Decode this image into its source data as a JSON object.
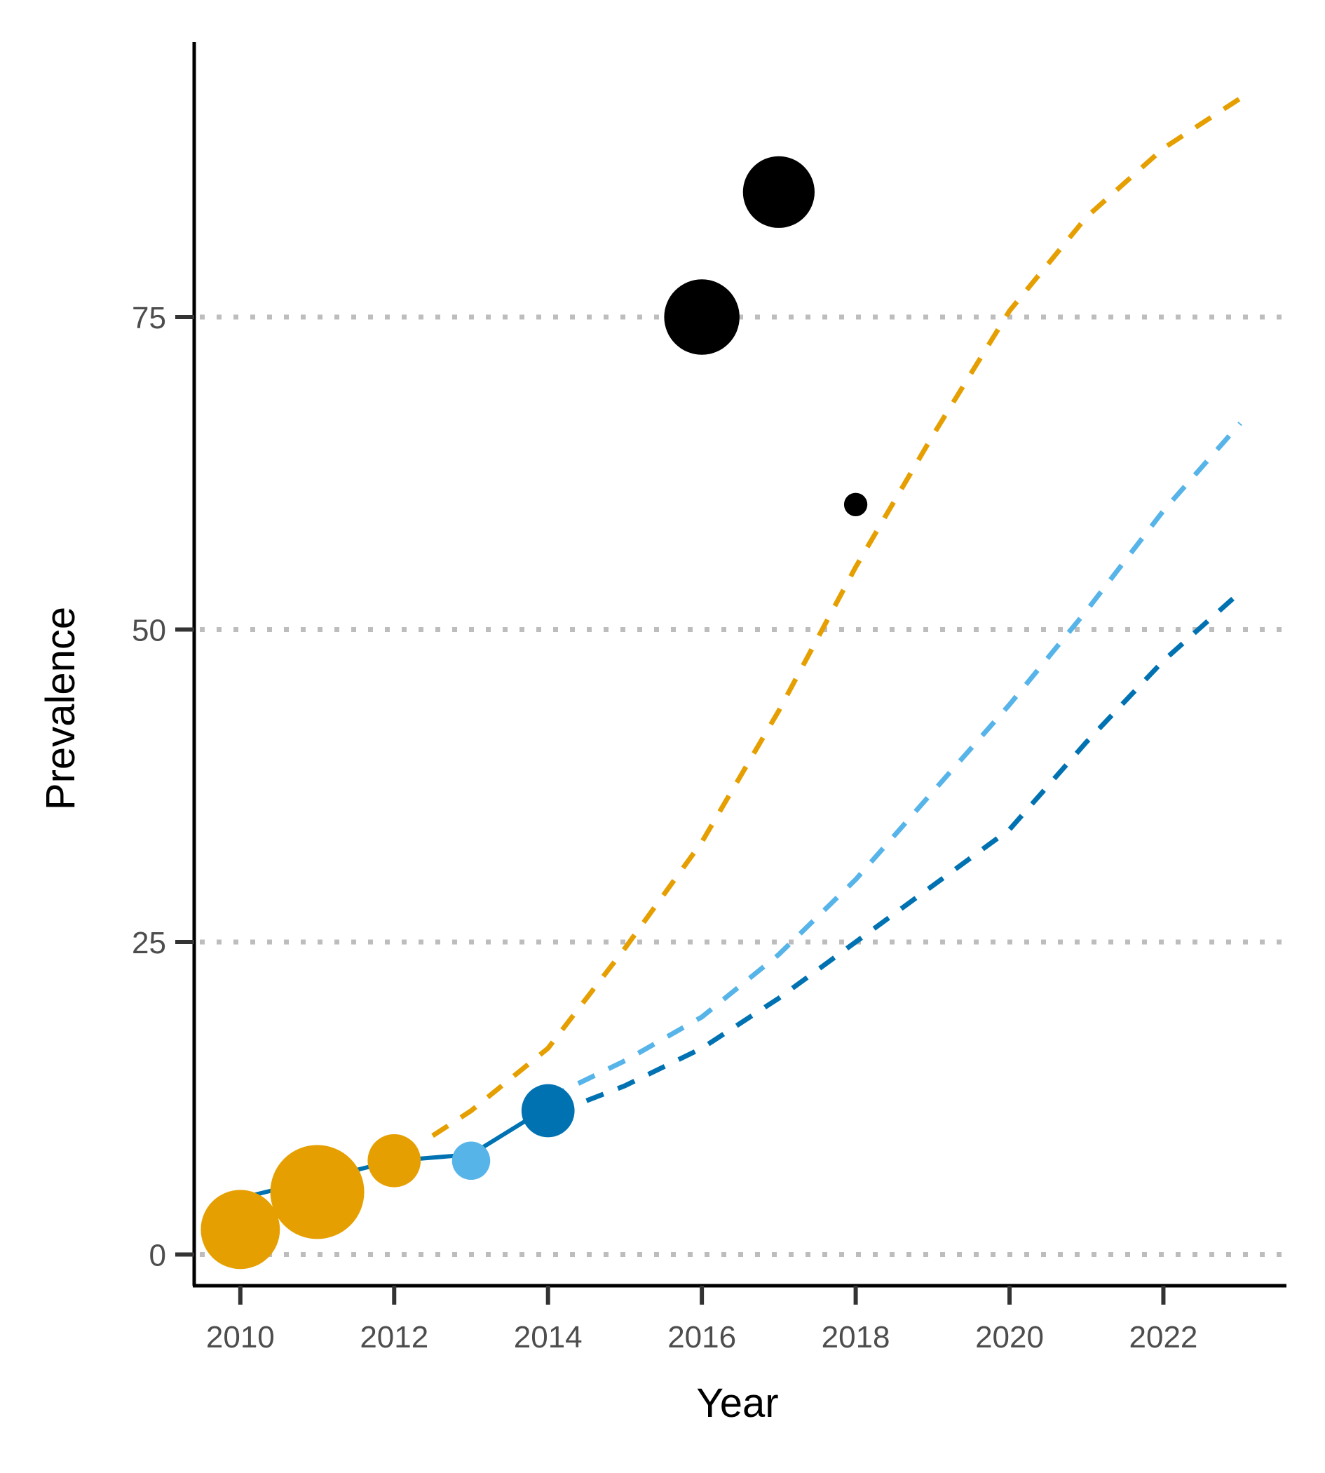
{
  "chart_data": {
    "type": "scatter",
    "xlabel": "Year",
    "ylabel": "Prevalence",
    "xlim": [
      2009.4,
      2023.6
    ],
    "ylim": [
      -2.5,
      97
    ],
    "x_ticks": [
      2010,
      2012,
      2014,
      2016,
      2018,
      2020,
      2022
    ],
    "y_ticks": [
      0,
      25,
      50,
      75
    ],
    "grid": "horizontal-dotted",
    "legend": "none",
    "colors": {
      "orange": "#E69F00",
      "light_blue": "#56B4E9",
      "blue": "#0072B2",
      "black": "#000000",
      "grid": "#bdbdbd"
    },
    "observed_line": {
      "color": "#0072B2",
      "x": [
        2010,
        2011,
        2012,
        2013,
        2014
      ],
      "y": [
        4.5,
        6.0,
        7.5,
        8.0,
        11.8
      ]
    },
    "projections": [
      {
        "color": "#E69F00",
        "x": [
          2012.5,
          2013,
          2014,
          2015,
          2016,
          2017,
          2018,
          2019,
          2020,
          2021,
          2022,
          2023
        ],
        "y": [
          9.5,
          11.5,
          16.5,
          24.5,
          33.0,
          43.5,
          55.0,
          65.5,
          75.5,
          83.0,
          88.5,
          92.5
        ]
      },
      {
        "color": "#56B4E9",
        "x": [
          2014,
          2015,
          2016,
          2017,
          2018,
          2019,
          2020,
          2021,
          2022,
          2023
        ],
        "y": [
          12.5,
          15.5,
          19.0,
          24.0,
          30.0,
          37.0,
          44.0,
          51.5,
          59.5,
          66.5
        ]
      },
      {
        "color": "#0072B2",
        "x": [
          2014.5,
          2015,
          2016,
          2017,
          2018,
          2019,
          2020,
          2021,
          2022,
          2023
        ],
        "y": [
          12.3,
          13.5,
          16.5,
          20.5,
          25.0,
          29.5,
          34.0,
          41.0,
          47.5,
          53.0
        ]
      }
    ],
    "points": [
      {
        "x": 2010,
        "y": 2.0,
        "size": 8,
        "color": "#E69F00"
      },
      {
        "x": 2011,
        "y": 5.0,
        "size": 10,
        "color": "#E69F00"
      },
      {
        "x": 2012,
        "y": 7.5,
        "size": 4.5,
        "color": "#E69F00"
      },
      {
        "x": 2013,
        "y": 7.5,
        "size": 2.5,
        "color": "#56B4E9"
      },
      {
        "x": 2014,
        "y": 11.5,
        "size": 4.5,
        "color": "#0072B2"
      },
      {
        "x": 2016,
        "y": 75.0,
        "size": 7.5,
        "color": "#000000"
      },
      {
        "x": 2017,
        "y": 85.0,
        "size": 7.0,
        "color": "#000000"
      },
      {
        "x": 2018,
        "y": 60.0,
        "size": 0.5,
        "color": "#000000"
      }
    ]
  }
}
